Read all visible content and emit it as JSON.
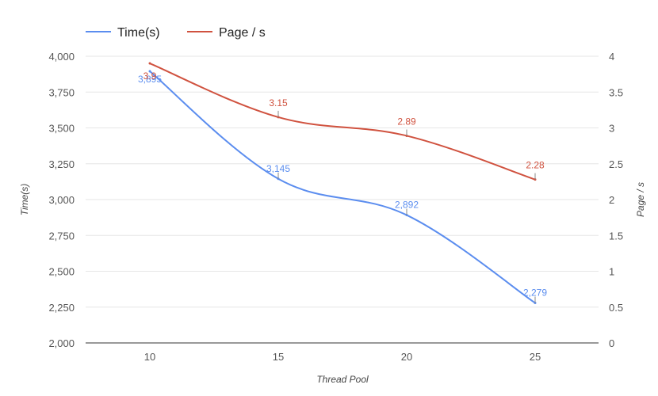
{
  "chart_data": {
    "type": "line",
    "x": [
      10,
      15,
      20,
      25
    ],
    "series": [
      {
        "name": "Time(s)",
        "axis": "left",
        "color": "#5b8def",
        "values": [
          3895,
          3145,
          2892,
          2279
        ],
        "labels": [
          "3,895",
          "3,145",
          "2,892",
          "2,279"
        ]
      },
      {
        "name": "Page / s",
        "axis": "right",
        "color": "#d0523f",
        "values": [
          3.9,
          3.15,
          2.89,
          2.28
        ],
        "labels": [
          "3.9",
          "3.15",
          "2.89",
          "2.28"
        ]
      }
    ],
    "xlabel": "Thread Pool",
    "ylabel_left": "Time(s)",
    "ylabel_right": "Page / s",
    "ylim_left": [
      2000,
      4000
    ],
    "ylim_right": [
      0,
      4
    ],
    "xticks": [
      "10",
      "15",
      "20",
      "25"
    ],
    "yticks_left": [
      "2,000",
      "2,250",
      "2,500",
      "2,750",
      "3,000",
      "3,250",
      "3,500",
      "3,750",
      "4,000"
    ],
    "yticks_right": [
      "0",
      "0.5",
      "1",
      "1.5",
      "2",
      "2.5",
      "3",
      "3.5",
      "4"
    ],
    "legend_position": "top-left",
    "grid": true
  }
}
